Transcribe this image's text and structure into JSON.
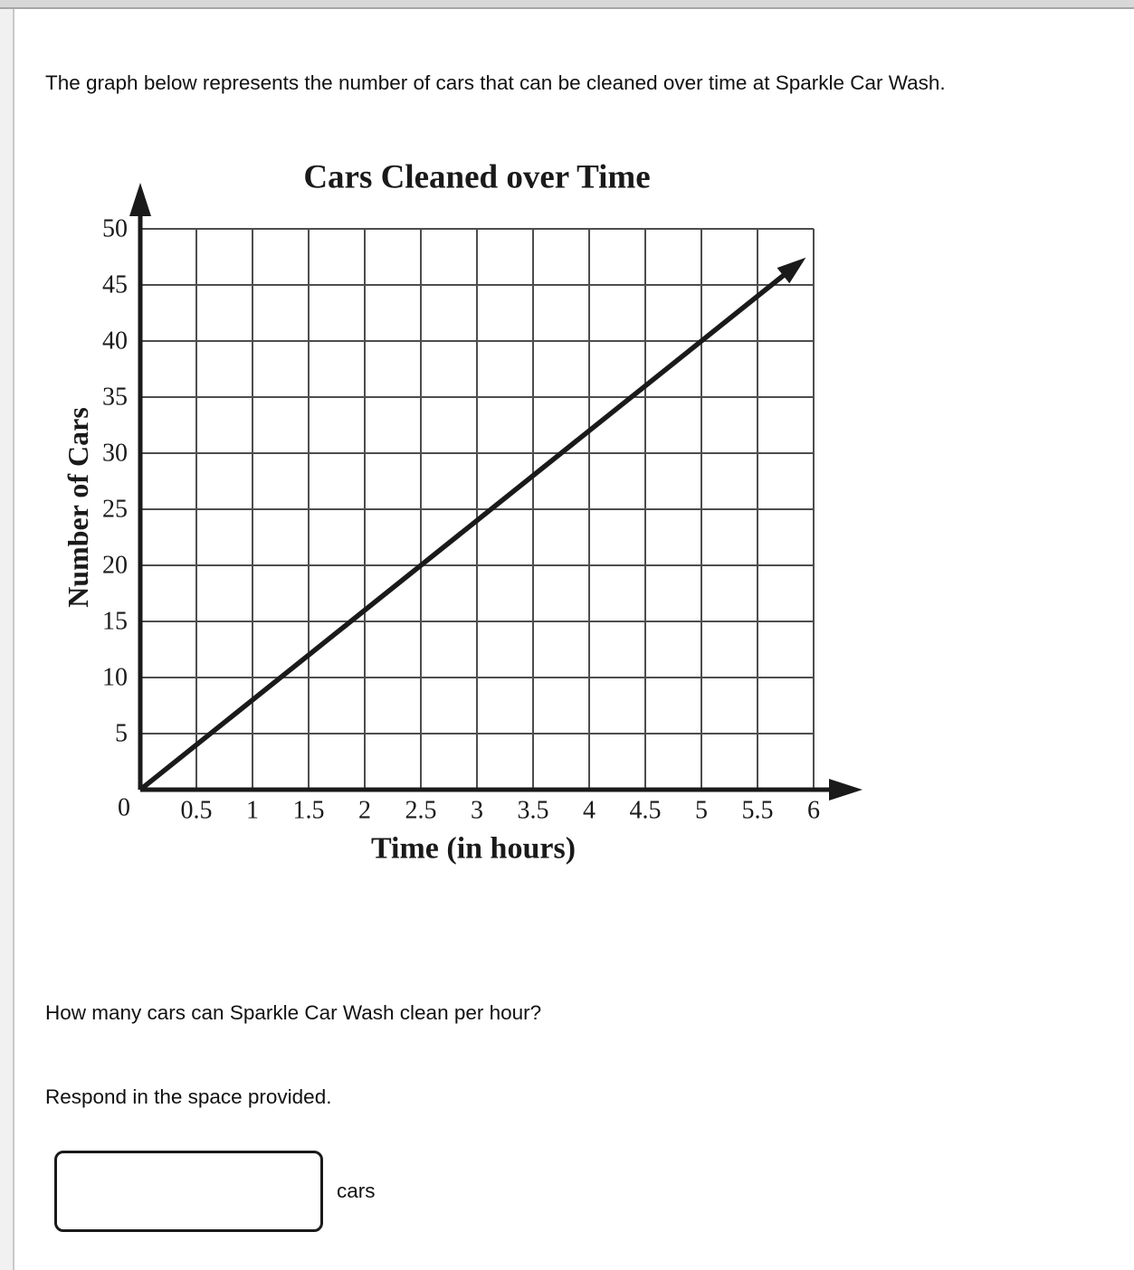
{
  "page": {
    "intro_text": "The graph below represents the number of cars that can be cleaned over time at Sparkle Car Wash.",
    "question_text": "How many cars can Sparkle Car Wash clean per hour?",
    "respond_text": "Respond in the space provided.",
    "answer": {
      "value": "",
      "unit_label": "cars"
    }
  },
  "chart_data": {
    "type": "line",
    "title": "Cars Cleaned over Time",
    "xlabel": "Time (in hours)",
    "ylabel": "Number of Cars",
    "xlim": [
      0,
      6
    ],
    "ylim": [
      0,
      50
    ],
    "x_tick_step": 0.5,
    "y_tick_step": 5,
    "x_tick_labels": [
      "0.5",
      "1",
      "1.5",
      "2",
      "2.5",
      "3",
      "3.5",
      "4",
      "4.5",
      "5",
      "5.5",
      "6"
    ],
    "y_tick_labels": [
      "5",
      "10",
      "15",
      "20",
      "25",
      "30",
      "35",
      "40",
      "45",
      "50"
    ],
    "origin_label": "0",
    "grid": true,
    "legend": "none",
    "ink_color": "#1a1a1a",
    "grid_color": "#4d4d4d",
    "series": [
      {
        "name": "cars-cleaned-line",
        "rate_cars_per_hour": 8,
        "points": [
          [
            0,
            0
          ],
          [
            0.5,
            4
          ],
          [
            1,
            8
          ],
          [
            1.5,
            12
          ],
          [
            2,
            16
          ],
          [
            2.5,
            20
          ],
          [
            3,
            24
          ],
          [
            3.5,
            28
          ],
          [
            4,
            32
          ],
          [
            4.5,
            36
          ],
          [
            5,
            40
          ],
          [
            5.5,
            44
          ],
          [
            6,
            48
          ]
        ],
        "style": "solid-arrow"
      }
    ]
  }
}
